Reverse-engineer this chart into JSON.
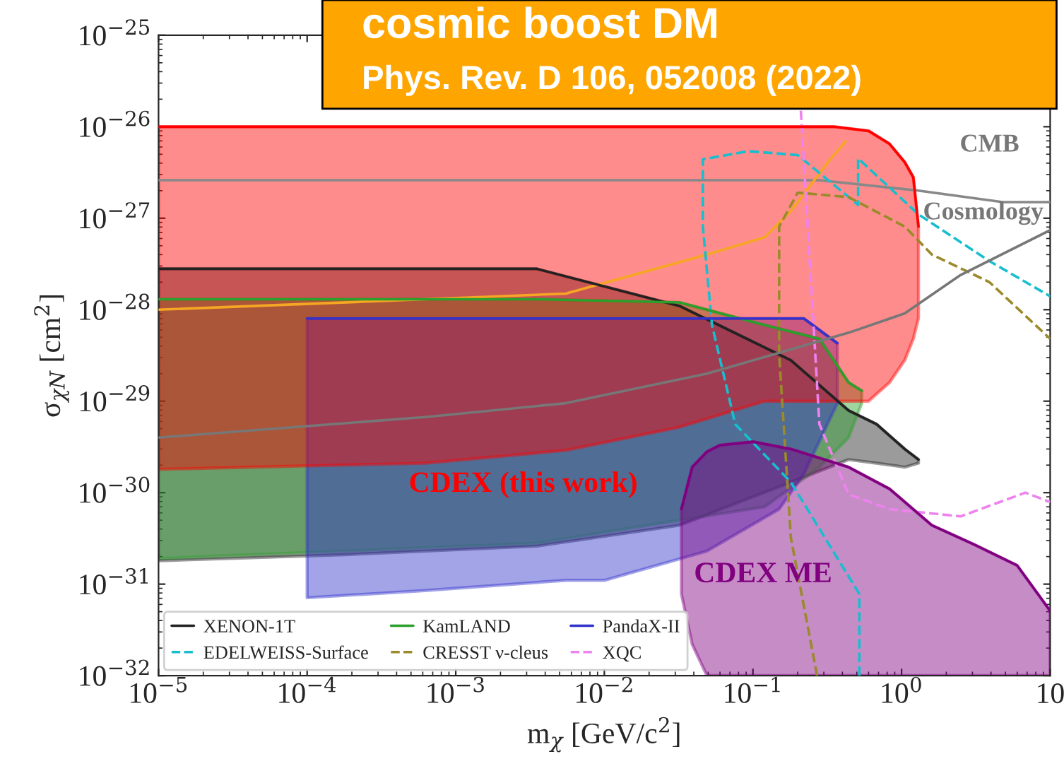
{
  "chart_data": {
    "type": "line",
    "title": "cosmic boost DM",
    "subtitle": "Phys. Rev. D 106, 052008 (2022)",
    "xlabel": "m$_{χ}$ [GeV/c$^{2}$]",
    "ylabel": "σ$_{χN}$ [cm$^{2}$]",
    "log": "xy",
    "legend": "bottom left",
    "xlim": [
      1e-05,
      10
    ],
    "ylim": [
      1e-32,
      1e-25
    ],
    "xticks": [
      {
        "value": 1e-05,
        "label": "10$^{−5}$"
      },
      {
        "value": 0.0001,
        "label": "10$^{−4}$"
      },
      {
        "value": 0.001,
        "label": "10$^{−3}$"
      },
      {
        "value": 0.01,
        "label": "10$^{−2}$"
      },
      {
        "value": 0.1,
        "label": "10$^{−1}$"
      },
      {
        "value": 1,
        "label": "10$^{0}$"
      },
      {
        "value": 10,
        "label": "10"
      }
    ],
    "yticks": [
      {
        "value": 1e-32,
        "label": "10$^{−32}$"
      },
      {
        "value": 1e-31,
        "label": "10$^{−31}$"
      },
      {
        "value": 1e-30,
        "label": "10$^{−30}$"
      },
      {
        "value": 1e-29,
        "label": "10$^{−29}$"
      },
      {
        "value": 1e-28,
        "label": "10$^{−28}$"
      },
      {
        "value": 1e-27,
        "label": "10$^{−27}$"
      },
      {
        "value": 1e-26,
        "label": "10$^{−26}$"
      },
      {
        "value": 1e-25,
        "label": "10$^{−25}$"
      }
    ],
    "annotations": [
      "CMB",
      "Cosmology",
      "CDEX (this work)",
      "CDEX ME"
    ],
    "series": [
      {
        "color": "#888888",
        "x": [
          1e-05,
          0.28,
          1.3,
          4.8,
          10
        ],
        "values": [
          2.6e-27,
          2.6e-27,
          2e-27,
          1.5e-27,
          1.5e-27
        ]
      },
      {
        "color": "#f5a623",
        "x": [
          1e-05,
          0.00062,
          0.0055,
          0.049,
          0.12,
          0.18,
          0.32,
          0.42
        ],
        "values": [
          1e-28,
          1.3e-28,
          1.5e-28,
          4e-28,
          6.2e-28,
          1.2e-27,
          4.1e-27,
          6.9e-27
        ]
      },
      {
        "name": "XENON-1T",
        "color": "#222222",
        "x": [
          1e-05,
          0.00018,
          0.0035,
          0.032,
          0.18,
          0.44,
          0.68,
          1.05,
          1.3
        ],
        "values": [
          2.8e-28,
          2.8e-28,
          2.8e-28,
          1.1e-28,
          2.8e-29,
          7.9e-30,
          5.6e-30,
          3e-30,
          2.3e-30
        ],
        "upper": [
          2.8e-28,
          2.8e-28,
          2.8e-28,
          1.1e-28,
          2.8e-29,
          7.9e-30,
          5.6e-30,
          3e-30,
          2.3e-30
        ],
        "lower": [
          1.8e-31,
          2.1e-31,
          2.6e-31,
          4.4e-31,
          1.3e-30,
          2.3e-30,
          2.1e-30,
          1.9e-30,
          2.1e-30
        ]
      },
      {
        "name": "EDELWEISS-Surface",
        "color": "#17becf",
        "line_style": "dashed",
        "x": [
          0.52,
          0.52,
          0.18,
          0.076,
          0.053,
          0.046,
          0.046,
          0.093,
          0.2,
          0.51,
          0.51,
          1.3,
          3.9,
          10
        ],
        "values": [
          1e-32,
          7.8e-32,
          1.3e-30,
          5.6e-30,
          6.8e-29,
          8.1e-28,
          4.4e-27,
          5.4e-27,
          4.9e-27,
          1.4e-27,
          4.5e-27,
          1.1e-27,
          3.4e-28,
          1.4e-28
        ]
      },
      {
        "name": "KamLAND",
        "color": "#2ca02c",
        "x": [
          1e-05,
          0.00062,
          0.0035,
          0.032,
          0.12,
          0.28,
          0.44,
          0.54
        ],
        "values": [
          1.3e-28,
          1.3e-28,
          1.3e-28,
          1.2e-28,
          6.8e-29,
          4.8e-29,
          1.6e-29,
          1.3e-29
        ],
        "upper": [
          1.3e-28,
          1.3e-28,
          1.3e-28,
          1.2e-28,
          6.8e-29,
          4.8e-29,
          1.6e-29,
          1.3e-29
        ],
        "lower": [
          1.9e-31,
          2.5e-31,
          2.8e-31,
          5e-31,
          7e-31,
          1.9e-30,
          4e-30,
          9.5e-30
        ]
      },
      {
        "name": "CRESST ν-cleus",
        "color": "#9a8a2a",
        "line_style": "dashed",
        "x": [
          0.27,
          0.18,
          0.15,
          0.15,
          0.2,
          0.44,
          1.05,
          1.6,
          3.9,
          10
        ],
        "values": [
          1e-32,
          3.2e-31,
          3.3e-29,
          8.1e-28,
          1.9e-27,
          1.7e-27,
          8.1e-28,
          4e-28,
          2e-28,
          4.8e-29
        ]
      },
      {
        "name": "PandaX-II",
        "color": "#3333cc",
        "x": [
          0.0001,
          0.00062,
          0.0055,
          0.01,
          0.049,
          0.15,
          0.22,
          0.37
        ],
        "values": [
          8e-29,
          8e-29,
          8e-29,
          8e-29,
          8e-29,
          8e-29,
          8e-29,
          4.3e-29
        ],
        "upper": [
          8e-29,
          8e-29,
          8e-29,
          8e-29,
          8e-29,
          8e-29,
          8e-29,
          4.3e-29
        ],
        "lower": [
          7.1e-32,
          8.5e-32,
          1.1e-31,
          1.1e-31,
          2.3e-31,
          6.6e-31,
          1.6e-30,
          9.5e-30
        ]
      },
      {
        "name": "XQC",
        "color": "#ee82ee",
        "line_style": "dashed",
        "x": [
          0.21,
          0.28,
          0.44,
          0.83,
          2.5,
          6.8,
          10
        ],
        "values": [
          1.5e-26,
          5.6e-30,
          9.6e-31,
          6.6e-31,
          5.5e-31,
          1e-30,
          7.9e-31
        ]
      },
      {
        "color": "#777777",
        "x": [
          1e-05,
          0.00062,
          0.0055,
          0.049,
          0.44,
          1.05,
          2.5,
          10
        ],
        "values": [
          4e-30,
          6.7e-30,
          9.5e-30,
          2e-29,
          5.6e-29,
          9.1e-29,
          2.4e-28,
          7.4e-28
        ]
      },
      {
        "color": "#ff0000",
        "x": [
          1e-05,
          0.00062,
          0.0055,
          0.032,
          0.12,
          0.35,
          0.6,
          0.83,
          1.05,
          1.2,
          1.3
        ],
        "values": [
          1e-26,
          1e-26,
          1e-26,
          1e-26,
          1e-26,
          1e-26,
          9e-27,
          6.5e-27,
          4.1e-27,
          2.8e-27,
          8.1e-28
        ],
        "upper": [
          1e-26,
          1e-26,
          1e-26,
          1e-26,
          1e-26,
          1e-26,
          9e-27,
          6.5e-27,
          4.1e-27,
          2.8e-27,
          8.1e-28
        ],
        "lower": [
          1.8e-30,
          2.1e-30,
          2.9e-30,
          5.2e-30,
          1e-29,
          1e-29,
          1e-29,
          1.6e-29,
          2.8e-29,
          4.8e-29,
          8.1e-29
        ]
      },
      {
        "color": "#800080",
        "x": [
          0.033,
          0.039,
          0.049,
          0.06,
          0.1,
          0.18,
          0.44,
          0.83,
          1.6,
          3.1,
          6.0,
          10
        ],
        "values": [
          6.6e-31,
          1.9e-30,
          2.8e-30,
          3.3e-30,
          3.6e-30,
          3e-30,
          1.9e-30,
          1.1e-30,
          4.4e-31,
          2.7e-31,
          1.6e-31,
          5.1e-32
        ],
        "upper": [
          6.6e-31,
          1.9e-30,
          2.8e-30,
          3.3e-30,
          3.6e-30,
          3e-30,
          1.9e-30,
          1.1e-30,
          4.4e-31,
          2.7e-31,
          1.6e-31,
          5.1e-32
        ],
        "lower": [
          7.8e-32,
          2.2e-32,
          1e-32,
          1e-32,
          1e-32,
          1e-32,
          1e-32,
          1e-32,
          1e-32,
          1e-32,
          1e-32,
          1e-32
        ]
      }
    ]
  }
}
